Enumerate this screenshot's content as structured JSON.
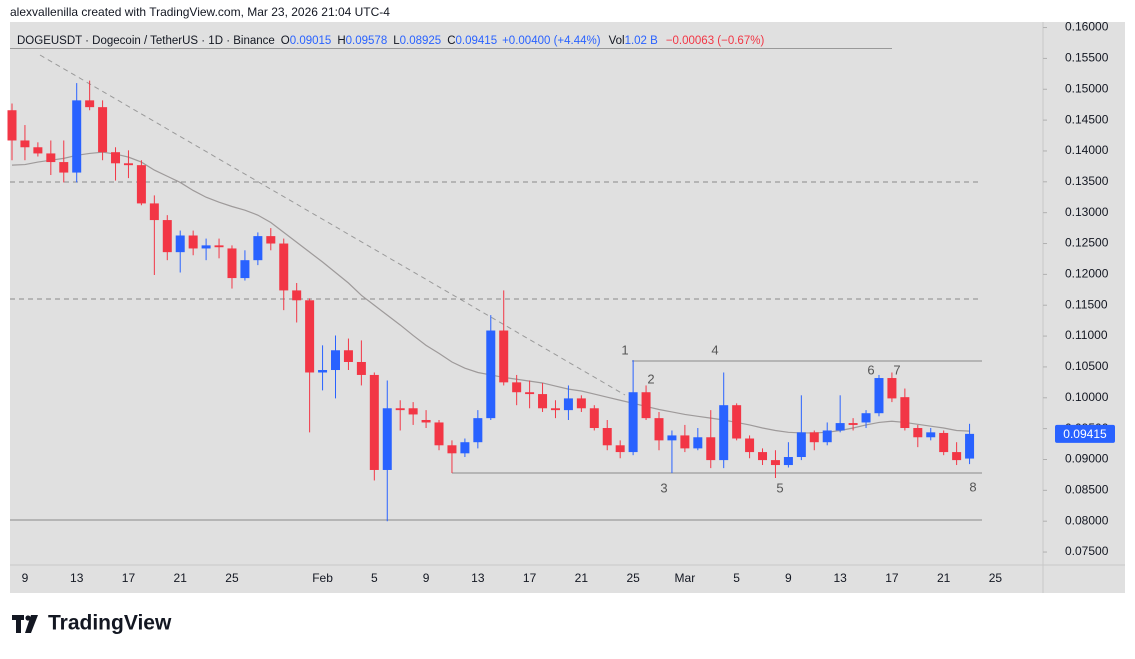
{
  "header": {
    "credit": "alexvallenilla created with TradingView.com, Mar 23, 2026 21:04 UTC-4"
  },
  "footer": {
    "brand": "TradingView"
  },
  "chart_data": {
    "type": "candlestick",
    "legend": {
      "symbol": "DOGEUSDT · Dogecoin / TetherUS · 1D · Binance",
      "o": "O",
      "h": "H",
      "l": "L",
      "c": "C",
      "change": "+0.00400 (+4.44%)",
      "vol_label": "Vol",
      "volume": "1.02 B",
      "vol_change": "−0.00063 (−0.67%)"
    },
    "categories": [
      null,
      "9",
      null,
      null,
      null,
      "13",
      null,
      null,
      null,
      "17",
      null,
      null,
      null,
      "21",
      null,
      null,
      null,
      "25",
      null,
      null,
      null,
      null,
      null,
      null,
      "Feb",
      null,
      null,
      null,
      "5",
      null,
      null,
      null,
      "9",
      null,
      null,
      null,
      "13",
      null,
      null,
      null,
      "17",
      null,
      null,
      null,
      "21",
      null,
      null,
      null,
      "25",
      null,
      null,
      null,
      "Mar",
      null,
      null,
      null,
      "5",
      null,
      null,
      null,
      "9",
      null,
      null,
      null,
      "13",
      null,
      null,
      null,
      "17",
      null,
      null,
      null,
      "21",
      null,
      null,
      null,
      "25"
    ],
    "open": [
      0.1466,
      0.1417,
      0.1406,
      0.1396,
      0.1382,
      0.1365,
      0.1482,
      0.1471,
      0.1398,
      0.138,
      0.1377,
      0.1315,
      0.1288,
      0.1236,
      0.1263,
      0.1242,
      0.1247,
      0.1242,
      0.1194,
      0.1223,
      0.1262,
      0.125,
      0.1174,
      0.1158,
      0.1041,
      0.1045,
      0.1077,
      0.1058,
      0.1037,
      0.0883,
      0.0983,
      0.0983,
      0.0964,
      0.096,
      0.0923,
      0.091,
      0.0928,
      0.0967,
      0.1109,
      0.1025,
      0.1009,
      0.1006,
      0.0983,
      0.098,
      0.0999,
      0.0983,
      0.0951,
      0.0923,
      0.0912,
      0.1009,
      0.0967,
      0.0931,
      0.0939,
      0.0918,
      0.0936,
      0.0899,
      0.0988,
      0.0934,
      0.0912,
      0.0899,
      0.0891,
      0.0904,
      0.0944,
      0.0928,
      0.0947,
      0.0959,
      0.096,
      0.0975,
      0.1032,
      0.1001,
      0.0951,
      0.0936,
      0.0943,
      0.0912,
      0.09015,
      null,
      null
    ],
    "high": [
      0.1477,
      0.1442,
      0.1414,
      0.1417,
      0.1417,
      0.151,
      0.1514,
      0.1482,
      0.1406,
      0.1401,
      0.1385,
      0.1328,
      0.1296,
      0.1271,
      0.1271,
      0.1258,
      0.1258,
      0.1247,
      0.1239,
      0.1268,
      0.1275,
      0.1258,
      0.1186,
      0.1161,
      0.1085,
      0.1101,
      0.1096,
      0.1093,
      0.1041,
      0.1028,
      0.0996,
      0.0993,
      0.098,
      0.0964,
      0.0931,
      0.0934,
      0.098,
      0.1134,
      0.1174,
      0.1037,
      0.1028,
      0.1024,
      0.0996,
      0.102,
      0.1004,
      0.0988,
      0.0964,
      0.0931,
      0.1061,
      0.102,
      0.0977,
      0.0947,
      0.0956,
      0.0951,
      0.098,
      0.1041,
      0.0991,
      0.0939,
      0.0918,
      0.0915,
      0.0928,
      0.1004,
      0.0947,
      0.096,
      0.1004,
      0.0967,
      0.098,
      0.1037,
      0.1041,
      0.1015,
      0.0956,
      0.0951,
      0.0947,
      0.0928,
      0.09578,
      null,
      null
    ],
    "low": [
      0.1385,
      0.1385,
      0.1391,
      0.1361,
      0.1349,
      0.1349,
      0.1466,
      0.1385,
      0.1352,
      0.1356,
      0.1312,
      0.1199,
      0.1223,
      0.1203,
      0.1231,
      0.1223,
      0.1226,
      0.1177,
      0.119,
      0.1215,
      0.1239,
      0.1142,
      0.1122,
      0.0944,
      0.1012,
      0.0999,
      0.1045,
      0.102,
      0.0866,
      0.08,
      0.0947,
      0.0956,
      0.0951,
      0.0915,
      0.0878,
      0.0904,
      0.0918,
      0.0964,
      0.102,
      0.0988,
      0.0983,
      0.0977,
      0.0967,
      0.0964,
      0.0977,
      0.0947,
      0.0915,
      0.0902,
      0.0907,
      0.0964,
      0.0915,
      0.0878,
      0.0912,
      0.0915,
      0.0886,
      0.0886,
      0.0931,
      0.0902,
      0.0891,
      0.087,
      0.0887,
      0.0899,
      0.0915,
      0.0923,
      0.0944,
      0.0947,
      0.0951,
      0.097,
      0.0993,
      0.0947,
      0.092,
      0.0931,
      0.0907,
      0.0891,
      0.08925,
      null,
      null
    ],
    "close": [
      0.1417,
      0.1406,
      0.1396,
      0.1382,
      0.1365,
      0.1482,
      0.1471,
      0.1398,
      0.138,
      0.1377,
      0.1315,
      0.1288,
      0.1236,
      0.1263,
      0.1242,
      0.1247,
      0.1244,
      0.1194,
      0.1223,
      0.1262,
      0.125,
      0.1174,
      0.1158,
      0.1041,
      0.1045,
      0.1077,
      0.1058,
      0.1037,
      0.0883,
      0.0983,
      0.098,
      0.0973,
      0.096,
      0.0923,
      0.091,
      0.0928,
      0.0967,
      0.1109,
      0.1025,
      0.1009,
      0.1006,
      0.0983,
      0.098,
      0.0999,
      0.0983,
      0.0951,
      0.0923,
      0.0912,
      0.1009,
      0.0967,
      0.0931,
      0.0939,
      0.0918,
      0.0936,
      0.0899,
      0.0988,
      0.0934,
      0.0912,
      0.0899,
      0.0891,
      0.0904,
      0.0944,
      0.0928,
      0.0947,
      0.0959,
      0.0956,
      0.0975,
      0.1032,
      0.0999,
      0.0951,
      0.0936,
      0.0944,
      0.0912,
      0.0899,
      0.09415,
      null,
      null
    ],
    "ma": [
      0.1377,
      0.1378,
      0.1382,
      0.1385,
      0.1388,
      0.1393,
      0.1396,
      0.1398,
      0.1395,
      0.139,
      0.1382,
      0.1369,
      0.1359,
      0.1349,
      0.1336,
      0.1325,
      0.1317,
      0.131,
      0.1304,
      0.1296,
      0.1284,
      0.1268,
      0.1252,
      0.1236,
      0.122,
      0.1203,
      0.1186,
      0.1166,
      0.115,
      0.1134,
      0.1118,
      0.1101,
      0.1085,
      0.1072,
      0.1058,
      0.1048,
      0.1041,
      0.1037,
      0.1033,
      0.103,
      0.1027,
      0.1024,
      0.1019,
      0.1014,
      0.1011,
      0.1006,
      0.1001,
      0.0996,
      0.0991,
      0.0986,
      0.0981,
      0.0977,
      0.0973,
      0.097,
      0.0967,
      0.0964,
      0.096,
      0.0956,
      0.0951,
      0.0947,
      0.0944,
      0.0943,
      0.0943,
      0.0944,
      0.0947,
      0.0951,
      0.0956,
      0.096,
      0.0962,
      0.096,
      0.0957,
      0.0954,
      0.0951,
      0.0947,
      0.0946,
      null,
      null
    ],
    "up_color": "#2962ff",
    "down_color": "#f23645",
    "ma_color": "#9e9a9a",
    "ylim": [
      0.0729,
      0.1609
    ],
    "yticks": [
      {
        "value": 0.075,
        "label": "0.07500"
      },
      {
        "value": 0.08,
        "label": "0.08000"
      },
      {
        "value": 0.085,
        "label": "0.08500"
      },
      {
        "value": 0.09,
        "label": "0.09000"
      },
      {
        "value": 0.095,
        "label": "0.09500"
      },
      {
        "value": 0.1,
        "label": "0.10000"
      },
      {
        "value": 0.105,
        "label": "0.10500"
      },
      {
        "value": 0.11,
        "label": "0.11000"
      },
      {
        "value": 0.115,
        "label": "0.11500"
      },
      {
        "value": 0.12,
        "label": "0.12000"
      },
      {
        "value": 0.125,
        "label": "0.12500"
      },
      {
        "value": 0.13,
        "label": "0.13000"
      },
      {
        "value": 0.135,
        "label": "0.13500"
      },
      {
        "value": 0.14,
        "label": "0.14000"
      },
      {
        "value": 0.145,
        "label": "0.14500"
      },
      {
        "value": 0.15,
        "label": "0.15000"
      },
      {
        "value": 0.155,
        "label": "0.15500"
      },
      {
        "value": 0.16,
        "label": "0.16000"
      }
    ],
    "annotations": [
      "1",
      "2",
      "3",
      "4",
      "5",
      "6",
      "7",
      "8"
    ]
  }
}
